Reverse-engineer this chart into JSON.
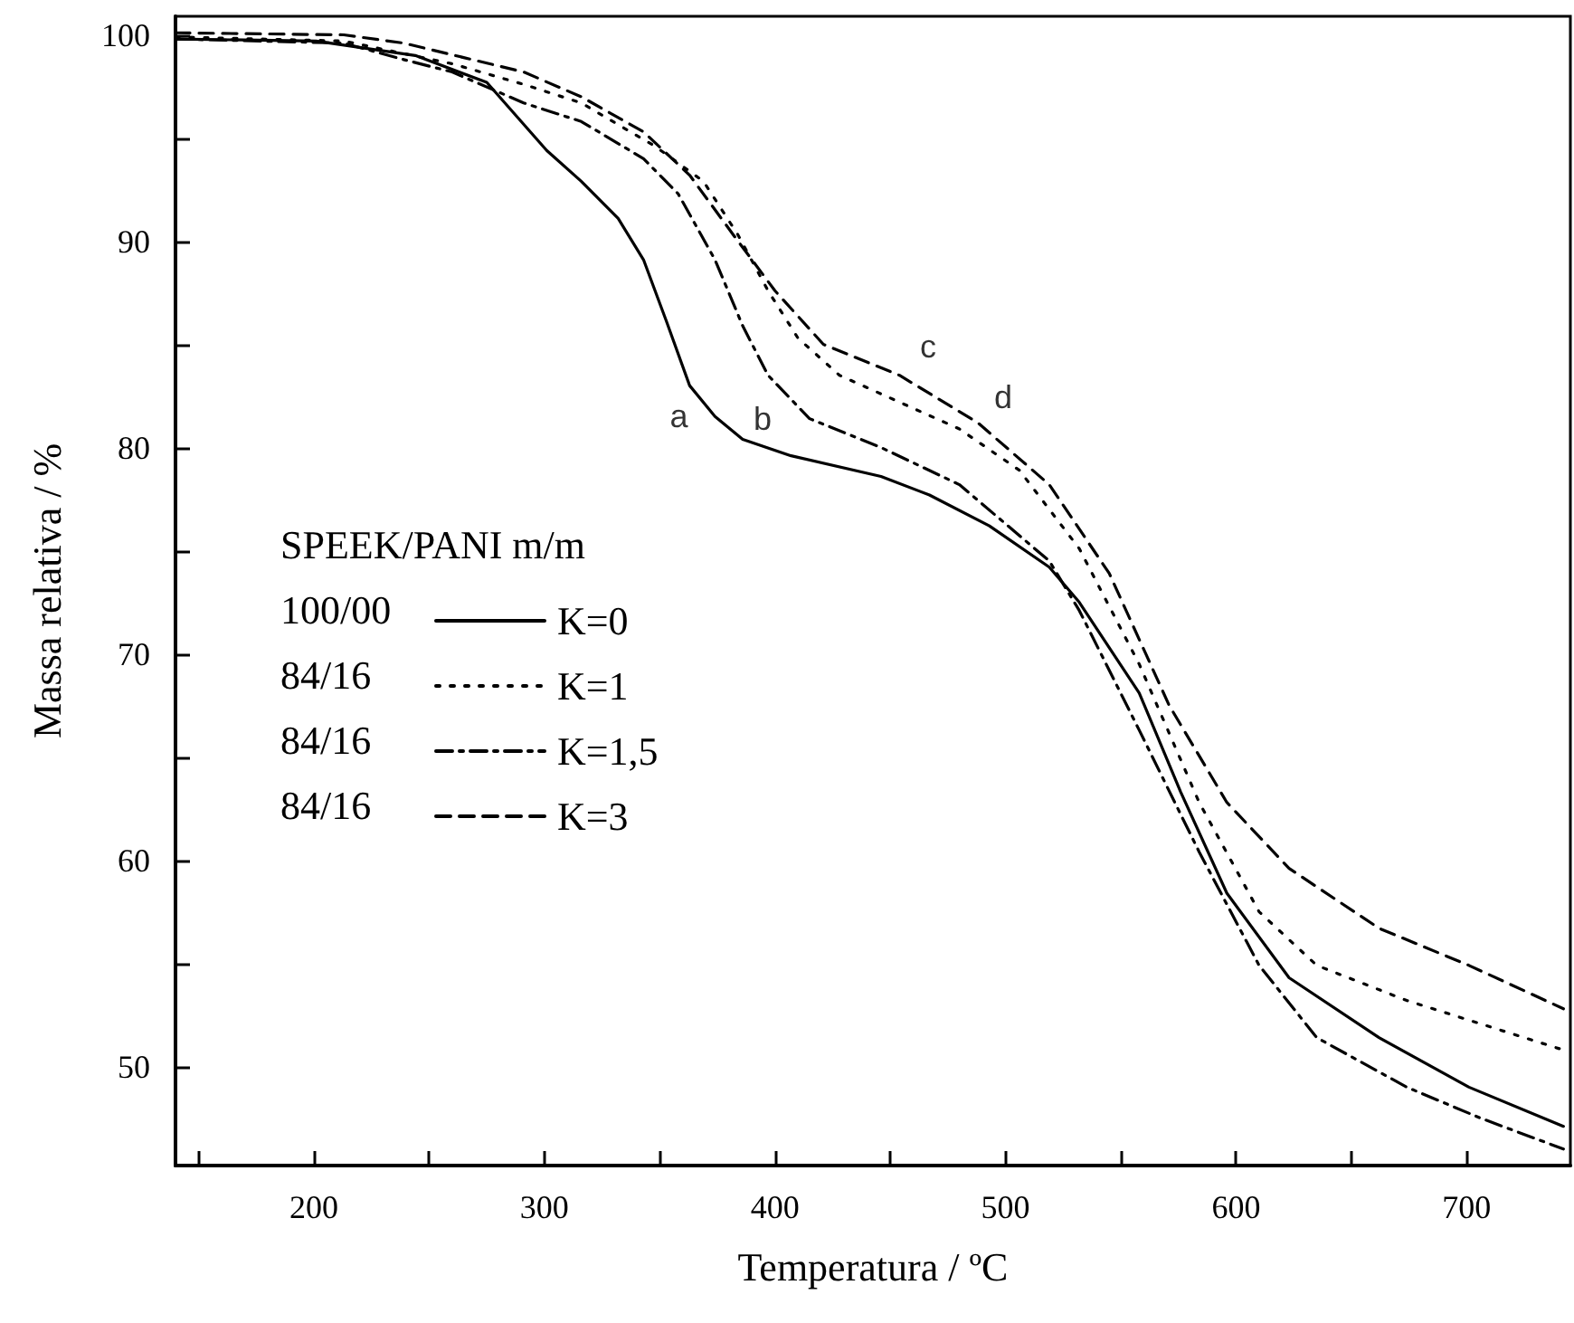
{
  "chart_data": {
    "type": "line",
    "xlabel": "Temperatura / ºC",
    "ylabel": "Massa relativa / %",
    "legend_title": "SPEEK/PANI m/m",
    "legend": "left",
    "grid": false,
    "marker": "none",
    "xlim": [
      140,
      745
    ],
    "ylim": [
      45.2,
      100.9
    ],
    "xticks": [
      {
        "value": 150,
        "label": null
      },
      200,
      {
        "value": 250,
        "label": null
      },
      300,
      {
        "value": 350,
        "label": null
      },
      400,
      {
        "value": 450,
        "label": null
      },
      500,
      {
        "value": 550,
        "label": null
      },
      600,
      {
        "value": 650,
        "label": null
      },
      700
    ],
    "yticks": [
      50,
      {
        "value": 55,
        "label": null
      },
      60,
      {
        "value": 65,
        "label": null
      },
      70,
      {
        "value": 75,
        "label": null
      },
      80,
      {
        "value": 85,
        "label": null
      },
      90,
      {
        "value": 95,
        "label": null
      },
      100
    ],
    "series": [
      {
        "name": "K=0",
        "color": "#000000",
        "line_style": "solid",
        "x": [
          140,
          201,
          244,
          275,
          301,
          316,
          332,
          343,
          353,
          363,
          374,
          386,
          407,
          446,
          467,
          493,
          519,
          532,
          558,
          576,
          596,
          623,
          662,
          701,
          742
        ],
        "values": [
          99.8,
          99.7,
          99.0,
          97.7,
          94.4,
          92.9,
          91.1,
          89.1,
          86.1,
          83.0,
          81.5,
          80.4,
          79.6,
          78.6,
          77.7,
          76.2,
          74.2,
          72.5,
          68.1,
          63.3,
          58.4,
          54.3,
          51.4,
          49.0,
          47.1
        ]
      },
      {
        "name": "K=1",
        "color": "#000000",
        "line_style": "dotted",
        "x": [
          140,
          213,
          260,
          291,
          316,
          348,
          369,
          384,
          397,
          410,
          428,
          446,
          480,
          506,
          532,
          558,
          584,
          610,
          635,
          674,
          742
        ],
        "values": [
          99.9,
          99.7,
          98.6,
          97.6,
          96.7,
          94.6,
          92.9,
          90.3,
          87.6,
          85.3,
          83.5,
          82.6,
          80.9,
          78.9,
          75.1,
          69.5,
          62.8,
          57.5,
          54.9,
          53.2,
          50.8
        ]
      },
      {
        "name": "K=1,5",
        "color": "#000000",
        "line_style": "dashdot",
        "x": [
          140,
          213,
          239,
          260,
          291,
          316,
          343,
          358,
          374,
          386,
          397,
          415,
          446,
          480,
          519,
          532,
          558,
          584,
          610,
          635,
          674,
          706,
          742
        ],
        "values": [
          99.8,
          99.6,
          98.8,
          98.2,
          96.7,
          95.8,
          94.0,
          92.3,
          89.1,
          85.9,
          83.5,
          81.4,
          80.0,
          78.2,
          74.5,
          72.1,
          66.3,
          60.4,
          54.9,
          51.4,
          49.0,
          47.5,
          46.0
        ]
      },
      {
        "name": "K=3",
        "color": "#000000",
        "line_style": "dashed",
        "x": [
          140,
          213,
          239,
          265,
          291,
          316,
          343,
          363,
          382,
          400,
          421,
          454,
          488,
          519,
          545,
          571,
          596,
          623,
          662,
          701,
          742
        ],
        "values": [
          100.1,
          100.0,
          99.6,
          98.9,
          98.2,
          97.0,
          95.3,
          93.2,
          90.3,
          87.6,
          85.0,
          83.5,
          81.2,
          78.2,
          73.9,
          67.5,
          62.8,
          59.6,
          56.7,
          54.9,
          52.8
        ]
      }
    ],
    "annotations": [
      {
        "text": "a",
        "x": 374,
        "y": 81.5
      },
      {
        "text": "b",
        "x": 415,
        "y": 81.4
      },
      {
        "text": "c",
        "x": 446,
        "y": 82.6
      },
      {
        "text": "d",
        "x": 488,
        "y": 81.2
      },
      "100/00",
      "84/16",
      "84/16",
      "84/16"
    ]
  }
}
